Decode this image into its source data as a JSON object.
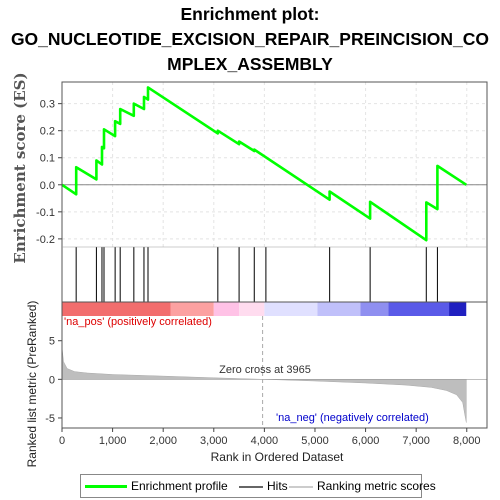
{
  "title_lines": [
    "Enrichment plot:",
    "GO_NUCLEOTIDE_EXCISION_REPAIR_PREINCISION_CO",
    "MPLEX_ASSEMBLY"
  ],
  "colors": {
    "es_line": "#00ff00",
    "hits": "#000000",
    "metric_fill": "#bebebe",
    "zero_line": "#a9a9a9",
    "pos_label": "#dd0000",
    "neg_label": "#0000cc"
  },
  "legend": {
    "enrichment": "Enrichment profile",
    "hits": "Hits",
    "ranking": "Ranking metric scores"
  },
  "chart_data": {
    "type": "line",
    "xlabel": "Rank in Ordered Dataset",
    "xlim": [
      0,
      8400
    ],
    "xticks": [
      0,
      1000,
      2000,
      3000,
      4000,
      5000,
      6000,
      7000,
      8000
    ],
    "xtick_labels": [
      "0",
      "1,000",
      "2,000",
      "3,000",
      "4,000",
      "5,000",
      "6,000",
      "7,000",
      "8,000"
    ],
    "es_panel": {
      "ylabel": "Enrichment score (ES)",
      "ylim": [
        -0.23,
        0.38
      ],
      "yticks": [
        -0.2,
        -0.1,
        0.0,
        0.1,
        0.2,
        0.3
      ],
      "ytick_labels": [
        "-0.2",
        "-0.1",
        "0.0",
        "0.1",
        "0.2",
        "0.3"
      ],
      "grid": true,
      "profile": [
        [
          0,
          0.0
        ],
        [
          280,
          -0.035
        ],
        [
          280,
          0.065
        ],
        [
          680,
          0.02
        ],
        [
          680,
          0.09
        ],
        [
          790,
          0.075
        ],
        [
          790,
          0.14
        ],
        [
          830,
          0.135
        ],
        [
          830,
          0.205
        ],
        [
          1050,
          0.18
        ],
        [
          1050,
          0.235
        ],
        [
          1150,
          0.225
        ],
        [
          1150,
          0.28
        ],
        [
          1420,
          0.255
        ],
        [
          1420,
          0.3
        ],
        [
          1620,
          0.28
        ],
        [
          1620,
          0.325
        ],
        [
          1700,
          0.315
        ],
        [
          1700,
          0.36
        ],
        [
          3080,
          0.19
        ],
        [
          3080,
          0.2
        ],
        [
          3500,
          0.15
        ],
        [
          3500,
          0.16
        ],
        [
          3800,
          0.125
        ],
        [
          3800,
          0.13
        ],
        [
          5290,
          -0.055
        ],
        [
          5290,
          -0.025
        ],
        [
          6090,
          -0.125
        ],
        [
          6090,
          -0.063
        ],
        [
          7200,
          -0.205
        ],
        [
          7200,
          -0.065
        ],
        [
          7420,
          -0.09
        ],
        [
          7420,
          0.07
        ],
        [
          7990,
          0.0
        ]
      ]
    },
    "hits": [
      280,
      680,
      790,
      830,
      1050,
      1150,
      1420,
      1620,
      1700,
      3080,
      3500,
      3800,
      4030,
      5290,
      6090,
      7200,
      7420
    ],
    "metric_panel": {
      "ylabel": "Ranked list metric (PreRanked)",
      "ylim": [
        -6.3,
        8.2
      ],
      "yticks": [
        -5,
        0,
        5
      ],
      "ytick_labels": [
        "-5",
        "0",
        "5"
      ],
      "zero_cross_rank": 3965,
      "zero_cross_label": "Zero cross at 3965",
      "pos_label": "'na_pos' (positively correlated)",
      "neg_label": "'na_neg' (negatively correlated)",
      "curve": [
        [
          0,
          4.2
        ],
        [
          30,
          2.3
        ],
        [
          100,
          1.4
        ],
        [
          250,
          1.0
        ],
        [
          500,
          0.82
        ],
        [
          1000,
          0.62
        ],
        [
          2000,
          0.42
        ],
        [
          3000,
          0.2
        ],
        [
          3965,
          0.0
        ],
        [
          5000,
          -0.22
        ],
        [
          6000,
          -0.48
        ],
        [
          6800,
          -0.75
        ],
        [
          7300,
          -1.05
        ],
        [
          7600,
          -1.45
        ],
        [
          7800,
          -2.0
        ],
        [
          7920,
          -3.0
        ],
        [
          7960,
          -4.5
        ],
        [
          7990,
          -5.6
        ]
      ]
    }
  }
}
